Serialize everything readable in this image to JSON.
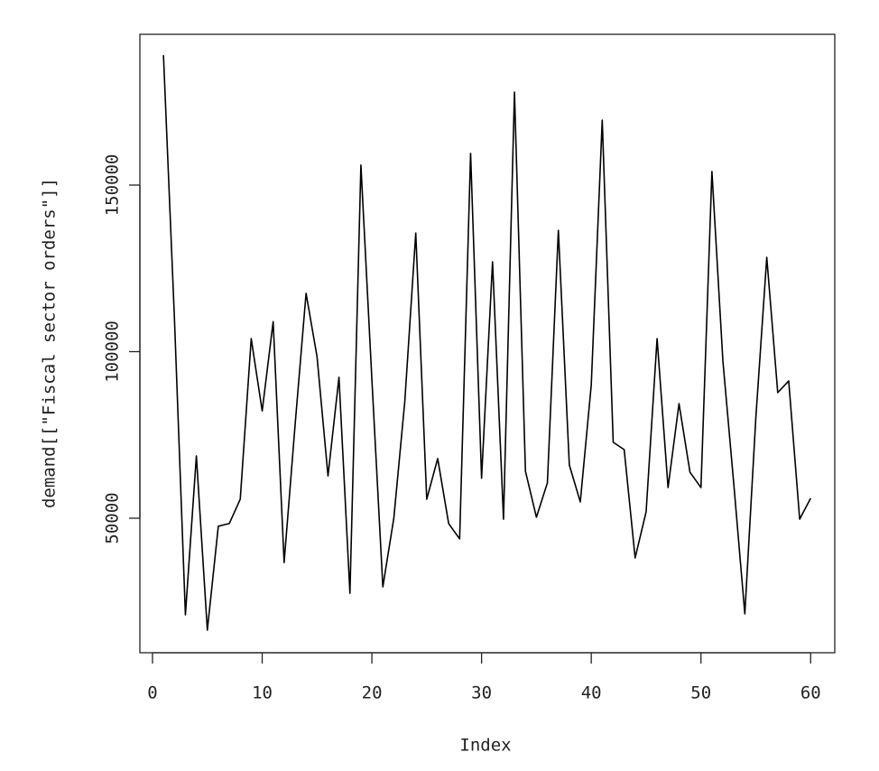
{
  "chart_data": {
    "type": "line",
    "xlabel": "Index",
    "ylabel": "demand[[\"Fiscal sector orders\"]]",
    "x": [
      1,
      2,
      3,
      4,
      5,
      6,
      7,
      8,
      9,
      10,
      11,
      12,
      13,
      14,
      15,
      16,
      17,
      18,
      19,
      20,
      21,
      22,
      23,
      24,
      25,
      26,
      27,
      28,
      29,
      30,
      31,
      32,
      33,
      34,
      35,
      36,
      37,
      38,
      39,
      40,
      41,
      42,
      43,
      44,
      45,
      46,
      47,
      48,
      49,
      50,
      51,
      52,
      53,
      54,
      55,
      56,
      57,
      58,
      59,
      60
    ],
    "series": [
      {
        "color": "#000000",
        "values": [
          189000,
          110000,
          21000,
          68700,
          16400,
          47600,
          48400,
          55700,
          103900,
          82200,
          109000,
          36700,
          78000,
          117500,
          98500,
          62700,
          92300,
          27500,
          156000,
          91700,
          29400,
          50000,
          85000,
          135600,
          55700,
          67900,
          48400,
          43800,
          159500,
          62000,
          127000,
          49700,
          177900,
          64100,
          50300,
          60600,
          136400,
          66000,
          54900,
          90000,
          169500,
          72800,
          70600,
          38100,
          51900,
          103900,
          59200,
          84400,
          63800,
          59200,
          154100,
          97200,
          60000,
          21300,
          80000,
          128300,
          87700,
          91200,
          49700,
          56000
        ]
      }
    ],
    "xlim": [
      -1.15,
      62.2
    ],
    "ylim": [
      9621,
      195257
    ],
    "xticks": [
      0,
      10,
      20,
      30,
      40,
      50,
      60
    ],
    "yticks": [
      50000,
      100000,
      150000
    ]
  }
}
